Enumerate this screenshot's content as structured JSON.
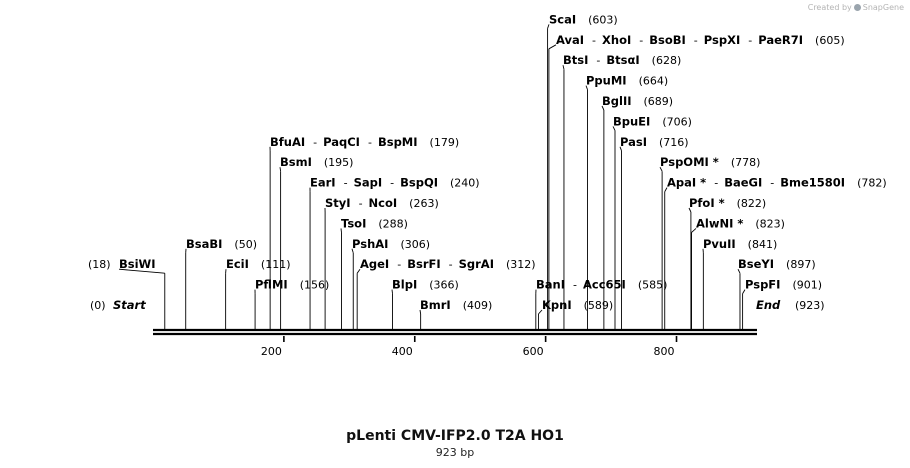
{
  "credit": {
    "text": "Created by",
    "brand": "SnapGene"
  },
  "map": {
    "title": "pLenti CMV-IFP2.0 T2A HO1",
    "length_label": "923 bp",
    "length_bp": 923,
    "start_label": "Start",
    "start_pos_label": "(0)",
    "end_label": "End",
    "end_pos_label": "(923)",
    "ticks": [
      "200",
      "400",
      "600",
      "800"
    ],
    "colors": {
      "line": "#000000",
      "tick": "#000000"
    }
  },
  "sites": [
    {
      "names": [
        "BsiWI"
      ],
      "pos": "(18)",
      "cut": 18,
      "pos_first": true
    },
    {
      "names": [
        "BsaBI"
      ],
      "pos": "(50)",
      "cut": 50
    },
    {
      "names": [
        "EciI"
      ],
      "pos": "(111)",
      "cut": 111
    },
    {
      "names": [
        "PflMI"
      ],
      "pos": "(156)",
      "cut": 156
    },
    {
      "names": [
        "BfuAI",
        "PaqCI",
        "BspMI"
      ],
      "pos": "(179)",
      "cut": 179
    },
    {
      "names": [
        "BsmI"
      ],
      "pos": "(195)",
      "cut": 195
    },
    {
      "names": [
        "EarI",
        "SapI",
        "BspQI"
      ],
      "pos": "(240)",
      "cut": 240
    },
    {
      "names": [
        "StyI",
        "NcoI"
      ],
      "pos": "(263)",
      "cut": 263
    },
    {
      "names": [
        "TsoI"
      ],
      "pos": "(288)",
      "cut": 288
    },
    {
      "names": [
        "PshAI"
      ],
      "pos": "(306)",
      "cut": 306
    },
    {
      "names": [
        "AgeI",
        "BsrFI",
        "SgrAI"
      ],
      "pos": "(312)",
      "cut": 312
    },
    {
      "names": [
        "BlpI"
      ],
      "pos": "(366)",
      "cut": 366
    },
    {
      "names": [
        "BmrI"
      ],
      "pos": "(409)",
      "cut": 409
    },
    {
      "names": [
        "BanI",
        "Acc65I"
      ],
      "pos": "(585)",
      "cut": 585
    },
    {
      "names": [
        "KpnI"
      ],
      "pos": "(589)",
      "cut": 589
    },
    {
      "names": [
        "ScaI"
      ],
      "pos": "(603)",
      "cut": 603
    },
    {
      "names": [
        "AvaI",
        "XhoI",
        "BsoBI",
        "PspXI",
        "PaeR7I"
      ],
      "pos": "(605)",
      "cut": 605
    },
    {
      "names": [
        "BtsI",
        "BtsαI"
      ],
      "pos": "(628)",
      "cut": 628
    },
    {
      "names": [
        "PpuMI"
      ],
      "pos": "(664)",
      "cut": 664
    },
    {
      "names": [
        "BglII"
      ],
      "pos": "(689)",
      "cut": 689
    },
    {
      "names": [
        "BpuEI"
      ],
      "pos": "(706)",
      "cut": 706
    },
    {
      "names": [
        "PasI"
      ],
      "pos": "(716)",
      "cut": 716
    },
    {
      "names": [
        "PspOMI *"
      ],
      "pos": "(778)",
      "cut": 778
    },
    {
      "names": [
        "ApaI *",
        "BaeGI",
        "Bme1580I"
      ],
      "pos": "(782)",
      "cut": 782
    },
    {
      "names": [
        "PfoI *"
      ],
      "pos": "(822)",
      "cut": 822
    },
    {
      "names": [
        "AlwNI *"
      ],
      "pos": "(823)",
      "cut": 823
    },
    {
      "names": [
        "PvuII"
      ],
      "pos": "(841)",
      "cut": 841
    },
    {
      "names": [
        "BseYI"
      ],
      "pos": "(897)",
      "cut": 897
    },
    {
      "names": [
        "PspFI"
      ],
      "pos": "(901)",
      "cut": 901
    }
  ]
}
